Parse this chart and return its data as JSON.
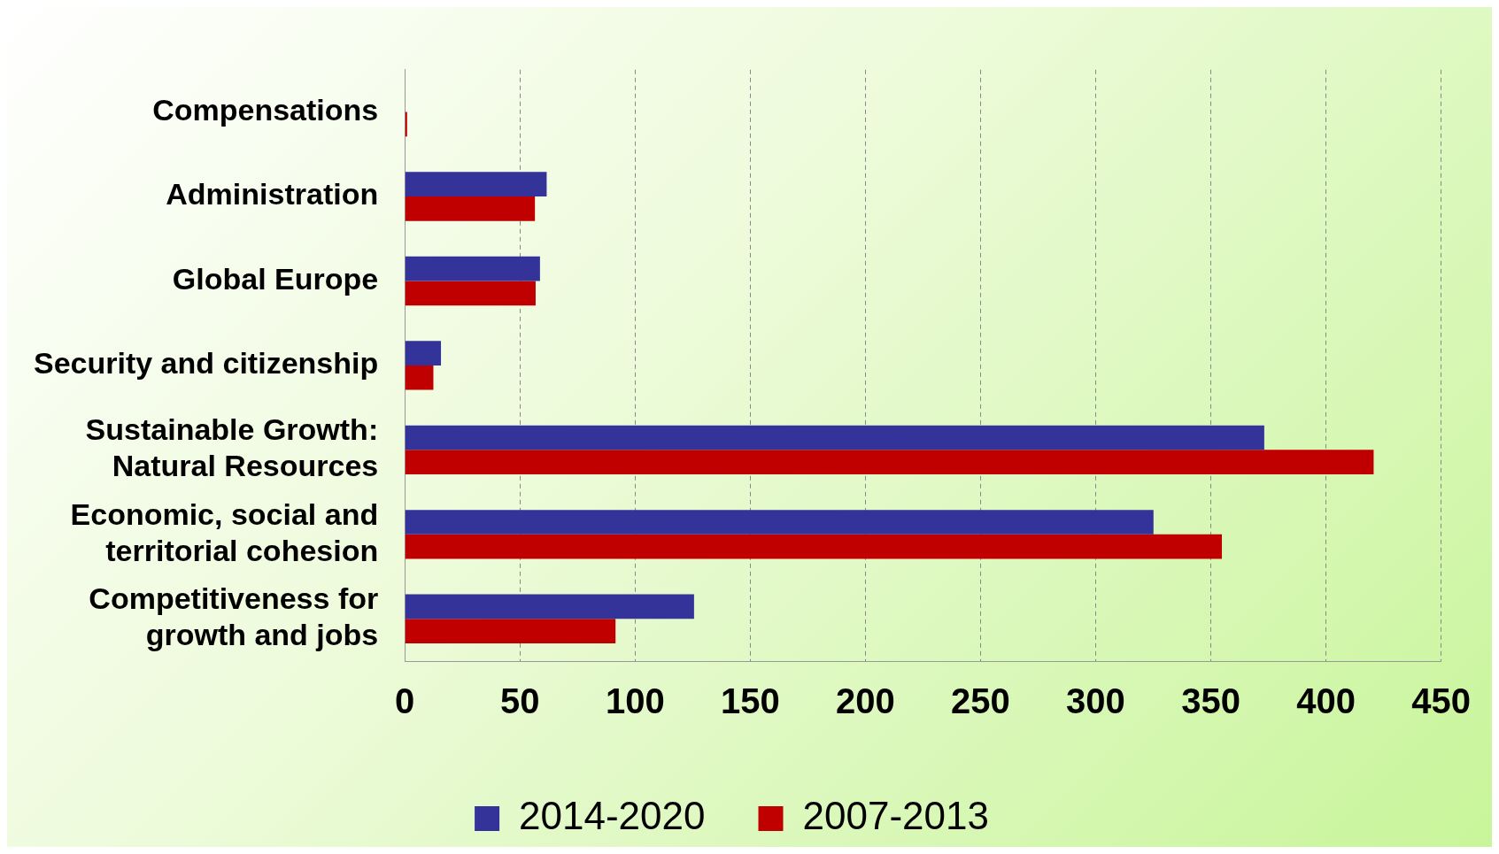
{
  "chart_data": {
    "type": "bar",
    "orientation": "horizontal",
    "categories": [
      "Compensations",
      "Administration",
      "Global Europe",
      "Security and citizenship",
      "Sustainable Growth: Natural Resources",
      "Economic, social and territorial cohesion",
      "Competitiveness for growth and jobs"
    ],
    "series": [
      {
        "name": "2014-2020",
        "color": "#333399",
        "values": [
          0,
          61.6,
          58.7,
          15.7,
          373.2,
          325.1,
          125.6
        ]
      },
      {
        "name": "2007-2013",
        "color": "#c00000",
        "values": [
          1,
          56.5,
          56.8,
          12.4,
          420.7,
          354.8,
          91.5
        ]
      }
    ],
    "xlim": [
      0,
      450
    ],
    "xticks": [
      0,
      50,
      100,
      150,
      200,
      250,
      300,
      350,
      400,
      450
    ],
    "grid": "x",
    "legend": "bottom"
  }
}
